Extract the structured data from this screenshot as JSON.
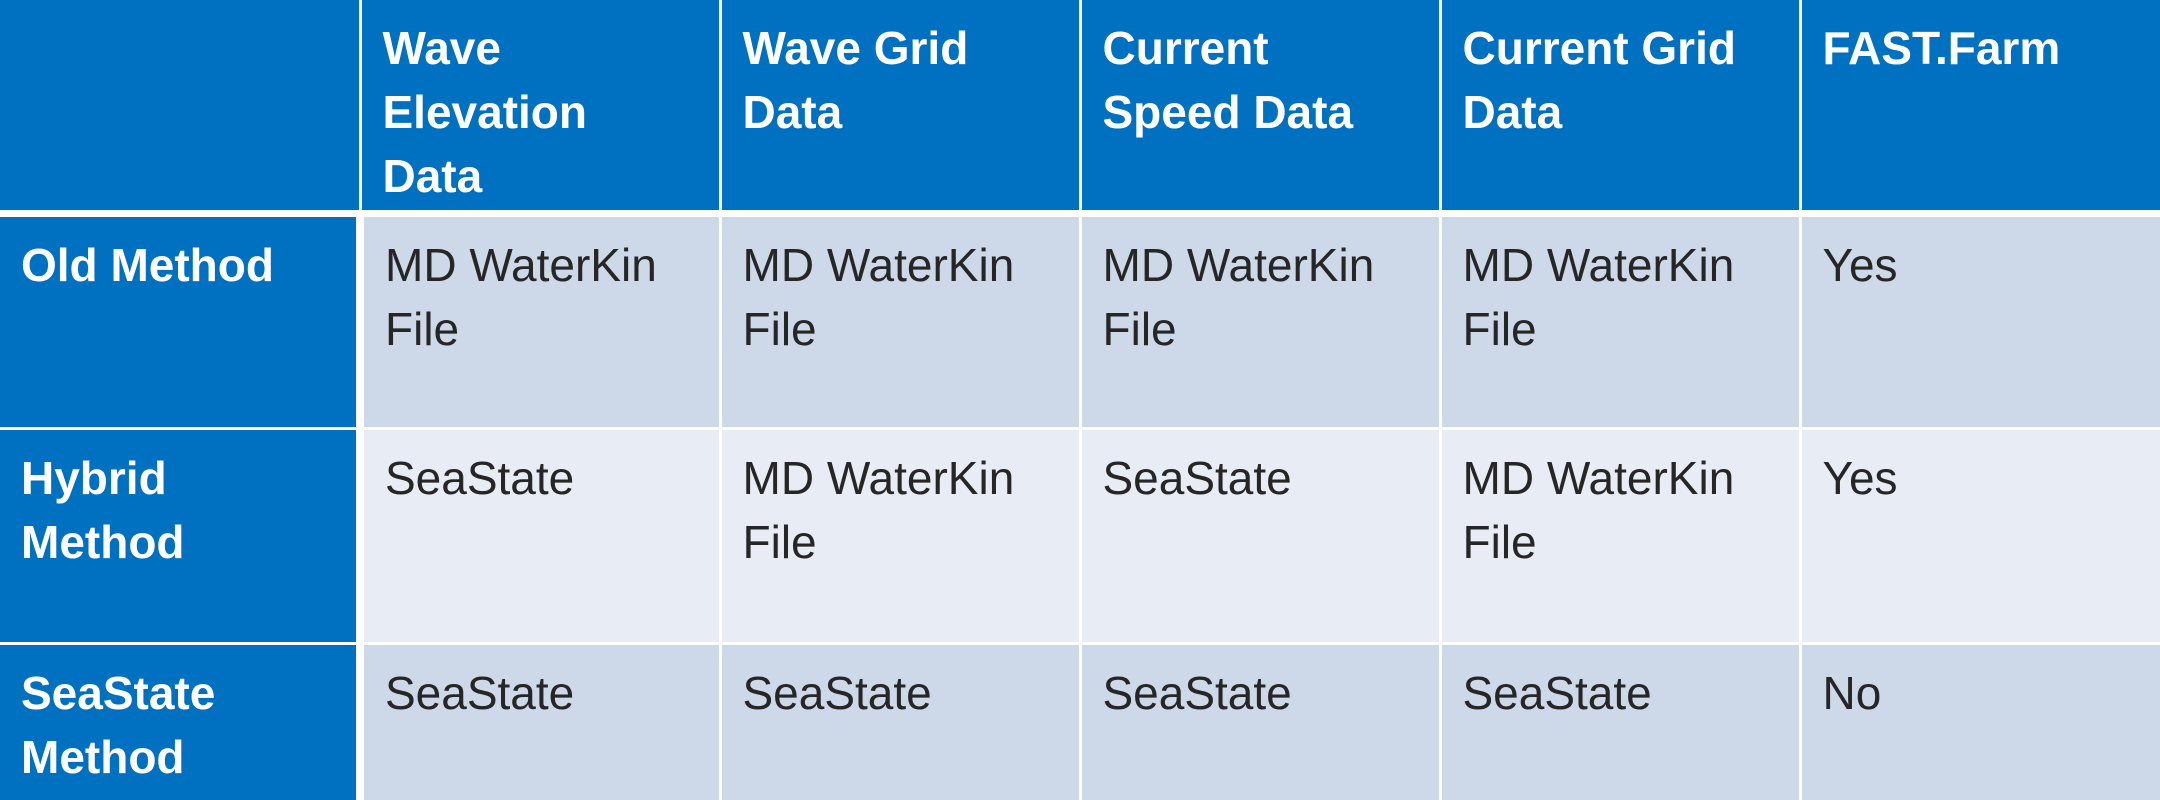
{
  "table": {
    "headers": [
      "",
      "Wave Elevation Data",
      "Wave Grid Data",
      "Current Speed Data",
      "Current Grid Data",
      "FAST.Farm"
    ],
    "rows": [
      {
        "label": "Old Method",
        "cells": [
          "MD WaterKin File",
          "MD WaterKin File",
          "MD WaterKin File",
          "MD WaterKin File",
          "Yes"
        ]
      },
      {
        "label": "Hybrid Method",
        "cells": [
          "SeaState",
          "MD WaterKin File",
          "SeaState",
          "MD WaterKin File",
          "Yes"
        ]
      },
      {
        "label": "SeaState Method",
        "cells": [
          "SeaState",
          "SeaState",
          "SeaState",
          "SeaState",
          "No"
        ]
      }
    ]
  },
  "colors": {
    "header_blue": "#0070c0",
    "row_dark": "#cdd8e8",
    "row_light": "#e7ecf5",
    "header_text": "#ffffff",
    "body_text": "#262626"
  }
}
